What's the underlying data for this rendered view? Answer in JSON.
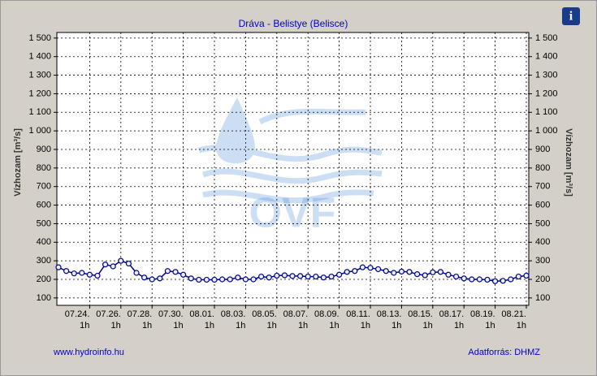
{
  "chart_data": {
    "type": "line",
    "title": "Dráva - Belistye (Belisce)",
    "y_label": "Vízhozam [m³/s]",
    "watermark": "OVF",
    "info_icon": "i",
    "footer_left": "www.hydroinfo.hu",
    "footer_right": "Adatforrás: DHMZ",
    "xtick_sublabel": "1h",
    "categories": [
      null,
      null,
      null,
      null,
      "07.24.",
      null,
      null,
      null,
      "07.26.",
      null,
      null,
      null,
      "07.28.",
      null,
      null,
      null,
      "07.30.",
      null,
      null,
      null,
      "08.01.",
      null,
      null,
      null,
      "08.03.",
      null,
      null,
      null,
      "08.05.",
      null,
      null,
      null,
      "08.07.",
      null,
      null,
      null,
      "08.09.",
      null,
      null,
      null,
      "08.11.",
      null,
      null,
      null,
      "08.13.",
      null,
      null,
      null,
      "08.15.",
      null,
      null,
      null,
      "08.17.",
      null,
      null,
      null,
      "08.19.",
      null,
      null,
      null,
      "08.21."
    ],
    "series": [
      {
        "name": "Vízhozam",
        "color": "#00008b",
        "values": [
          265,
          245,
          232,
          235,
          225,
          220,
          280,
          270,
          300,
          285,
          235,
          210,
          200,
          205,
          245,
          240,
          225,
          205,
          198,
          198,
          198,
          200,
          200,
          210,
          200,
          200,
          215,
          210,
          220,
          222,
          218,
          218,
          215,
          215,
          210,
          215,
          225,
          240,
          245,
          265,
          262,
          255,
          245,
          235,
          242,
          240,
          228,
          222,
          238,
          240,
          225,
          215,
          205,
          200,
          200,
          198,
          190,
          192,
          200,
          215,
          220
        ]
      }
    ],
    "ylim": [
      60,
      1530
    ],
    "yticks": [
      100,
      200,
      300,
      400,
      500,
      600,
      700,
      800,
      900,
      {
        "value": 1000,
        "label": "1 000"
      },
      {
        "value": 1100,
        "label": "1 100"
      },
      {
        "value": 1200,
        "label": "1 200"
      },
      {
        "value": 1300,
        "label": "1 300"
      },
      {
        "value": 1400,
        "label": "1 400"
      },
      {
        "value": 1500,
        "label": "1 500"
      }
    ],
    "grid": true
  }
}
